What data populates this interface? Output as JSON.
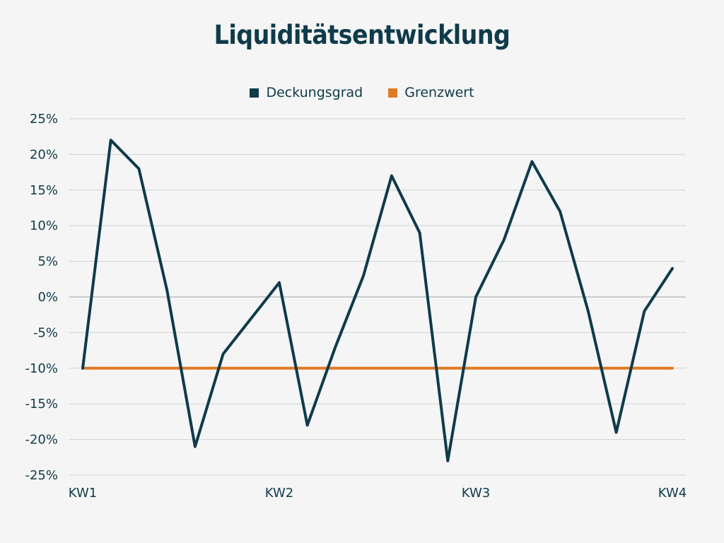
{
  "chart_data": {
    "type": "line",
    "title": "Liquiditätsentwicklung",
    "xlabel": "",
    "ylabel": "",
    "x_tick_labels": [
      "KW1",
      "KW2",
      "KW3",
      "KW4"
    ],
    "x_tick_positions": [
      0,
      7,
      14,
      21
    ],
    "y_ticks": [
      25,
      20,
      15,
      10,
      5,
      0,
      -5,
      -10,
      -15,
      -20,
      -25
    ],
    "y_tick_labels": [
      "25%",
      "20%",
      "15%",
      "10%",
      "5%",
      "0%",
      "-5%",
      "-10%",
      "-15%",
      "-20%",
      "-25%"
    ],
    "ylim": [
      -25,
      25
    ],
    "xlim": [
      0,
      21
    ],
    "grid": true,
    "legend_position": "top-center",
    "x": [
      0,
      1,
      2,
      3,
      4,
      5,
      6,
      7,
      8,
      9,
      10,
      11,
      12,
      13,
      14,
      15,
      16,
      17,
      18,
      19,
      20,
      21
    ],
    "series": [
      {
        "name": "Deckungsgrad",
        "color": "#0f3b4a",
        "values": [
          -10,
          22,
          18,
          1,
          -21,
          -8,
          -3,
          2,
          -18,
          -7,
          3,
          17,
          9,
          -23,
          0,
          8,
          19,
          12,
          -2,
          -19,
          -2,
          4
        ]
      },
      {
        "name": "Grenzwert",
        "color": "#e07b24",
        "values": [
          -10,
          -10,
          -10,
          -10,
          -10,
          -10,
          -10,
          -10,
          -10,
          -10,
          -10,
          -10,
          -10,
          -10,
          -10,
          -10,
          -10,
          -10,
          -10,
          -10,
          -10,
          -10
        ]
      }
    ]
  }
}
